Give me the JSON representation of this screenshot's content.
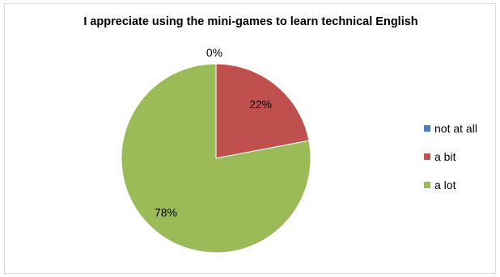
{
  "chart_data": {
    "type": "pie",
    "title": "I appreciate using the mini-games to learn technical English",
    "categories": [
      "not at all",
      "a bit",
      "a lot"
    ],
    "values": [
      0,
      22,
      78
    ],
    "data_labels": [
      "0%",
      "22%",
      "78%"
    ],
    "colors": [
      "#4a7ebb",
      "#c0504d",
      "#9bbb59"
    ],
    "legend_position": "right"
  }
}
